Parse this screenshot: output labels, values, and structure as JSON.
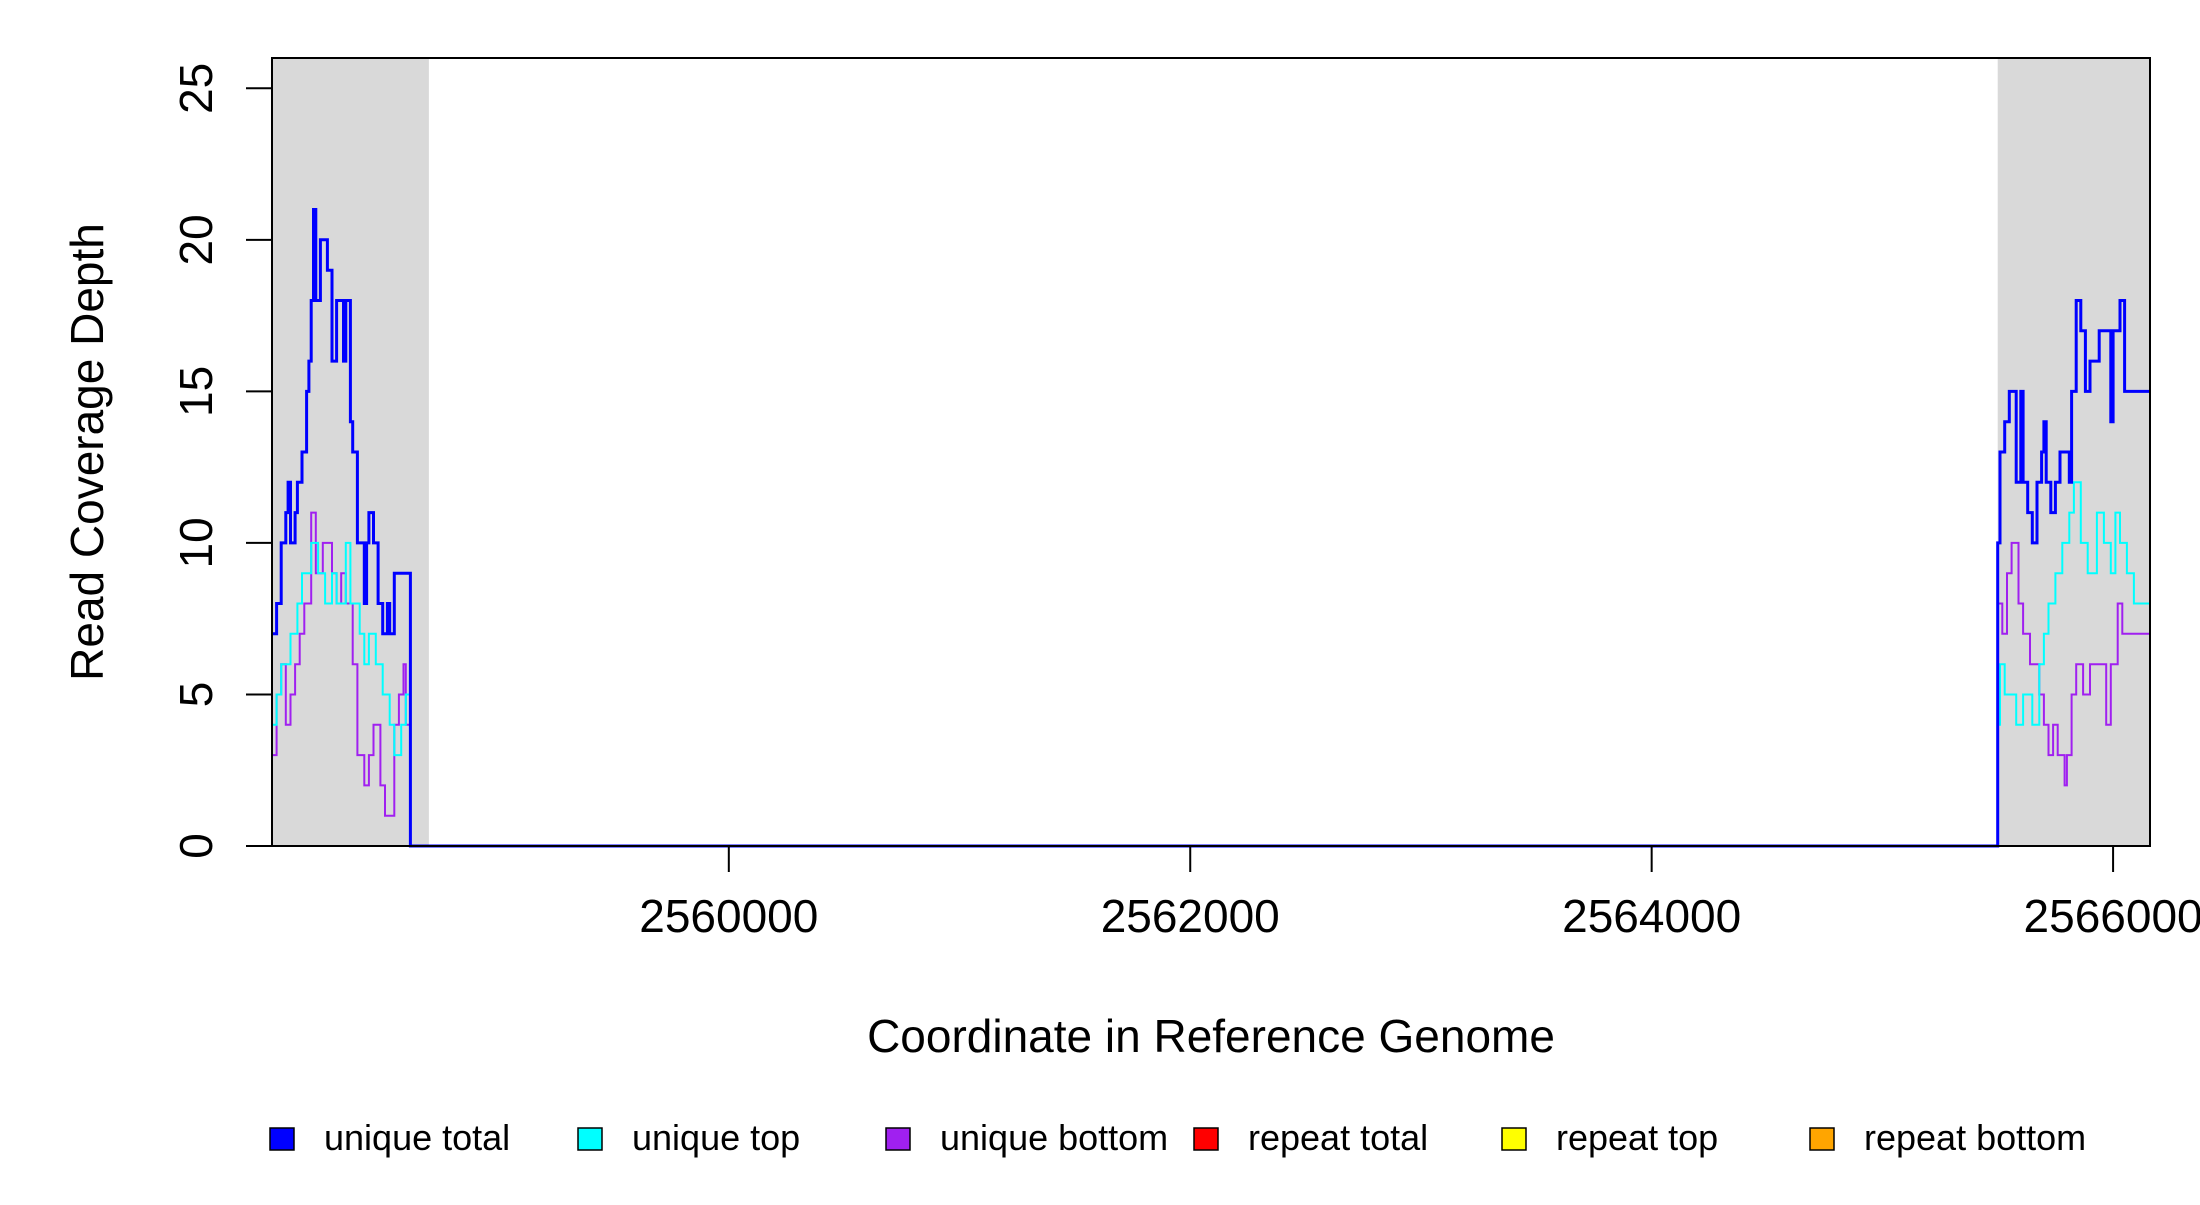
{
  "chart_data": {
    "type": "line",
    "title": "",
    "xlabel": "Coordinate in Reference Genome",
    "ylabel": "Read Coverage Depth",
    "xlim": [
      2558020,
      2566160
    ],
    "ylim": [
      0,
      26
    ],
    "x_ticks": [
      2560000,
      2562000,
      2564000,
      2566000
    ],
    "x_tick_labels": [
      "2560000",
      "2562000",
      "2564000",
      "2566000"
    ],
    "y_ticks": [
      0,
      5,
      10,
      15,
      20,
      25
    ],
    "y_tick_labels": [
      "0",
      "5",
      "10",
      "15",
      "20",
      "25"
    ],
    "grid": false,
    "shaded_regions": [
      {
        "x_start": 2558020,
        "x_end": 2558700,
        "color": "#d9d9d9"
      },
      {
        "x_start": 2565500,
        "x_end": 2566160,
        "color": "#d9d9d9"
      }
    ],
    "legend": {
      "position": "bottom",
      "items": [
        {
          "label": "unique total",
          "color": "#0000ff"
        },
        {
          "label": "unique top",
          "color": "#00ffff"
        },
        {
          "label": "unique bottom",
          "color": "#a020f0"
        },
        {
          "label": "repeat total",
          "color": "#ff0000"
        },
        {
          "label": "repeat top",
          "color": "#ffff00"
        },
        {
          "label": "repeat bottom",
          "color": "#ffa500"
        }
      ]
    },
    "series": [
      {
        "name": "unique total",
        "color": "#0000ff",
        "stroke_width": 3,
        "points": [
          [
            2558020,
            7
          ],
          [
            2558040,
            8
          ],
          [
            2558060,
            10
          ],
          [
            2558080,
            11
          ],
          [
            2558090,
            12
          ],
          [
            2558100,
            10
          ],
          [
            2558120,
            11
          ],
          [
            2558130,
            12
          ],
          [
            2558150,
            13
          ],
          [
            2558170,
            15
          ],
          [
            2558180,
            16
          ],
          [
            2558190,
            18
          ],
          [
            2558200,
            21
          ],
          [
            2558210,
            18
          ],
          [
            2558230,
            20
          ],
          [
            2558260,
            19
          ],
          [
            2558280,
            16
          ],
          [
            2558300,
            18
          ],
          [
            2558330,
            16
          ],
          [
            2558340,
            18
          ],
          [
            2558360,
            14
          ],
          [
            2558370,
            13
          ],
          [
            2558390,
            10
          ],
          [
            2558420,
            8
          ],
          [
            2558430,
            10
          ],
          [
            2558440,
            11
          ],
          [
            2558460,
            10
          ],
          [
            2558480,
            8
          ],
          [
            2558500,
            7
          ],
          [
            2558520,
            8
          ],
          [
            2558530,
            7
          ],
          [
            2558550,
            9
          ],
          [
            2558600,
            9
          ],
          [
            2558620,
            0
          ],
          [
            2565480,
            0
          ],
          [
            2565500,
            10
          ],
          [
            2565510,
            13
          ],
          [
            2565530,
            14
          ],
          [
            2565550,
            15
          ],
          [
            2565580,
            12
          ],
          [
            2565600,
            15
          ],
          [
            2565610,
            12
          ],
          [
            2565630,
            11
          ],
          [
            2565650,
            10
          ],
          [
            2565670,
            12
          ],
          [
            2565690,
            13
          ],
          [
            2565700,
            14
          ],
          [
            2565710,
            12
          ],
          [
            2565730,
            11
          ],
          [
            2565750,
            12
          ],
          [
            2565770,
            13
          ],
          [
            2565810,
            12
          ],
          [
            2565820,
            15
          ],
          [
            2565840,
            18
          ],
          [
            2565860,
            17
          ],
          [
            2565880,
            15
          ],
          [
            2565900,
            16
          ],
          [
            2565940,
            17
          ],
          [
            2565990,
            14
          ],
          [
            2566000,
            17
          ],
          [
            2566030,
            18
          ],
          [
            2566050,
            15
          ],
          [
            2566160,
            15
          ]
        ]
      },
      {
        "name": "unique top",
        "color": "#00ffff",
        "stroke_width": 2,
        "points": [
          [
            2558020,
            4
          ],
          [
            2558040,
            5
          ],
          [
            2558060,
            6
          ],
          [
            2558100,
            7
          ],
          [
            2558130,
            8
          ],
          [
            2558150,
            9
          ],
          [
            2558190,
            10
          ],
          [
            2558220,
            9
          ],
          [
            2558250,
            8
          ],
          [
            2558280,
            9
          ],
          [
            2558300,
            8
          ],
          [
            2558340,
            10
          ],
          [
            2558360,
            8
          ],
          [
            2558400,
            7
          ],
          [
            2558420,
            6
          ],
          [
            2558440,
            7
          ],
          [
            2558470,
            6
          ],
          [
            2558500,
            5
          ],
          [
            2558530,
            4
          ],
          [
            2558550,
            3
          ],
          [
            2558580,
            4
          ],
          [
            2558600,
            5
          ],
          [
            2558620,
            0
          ],
          [
            2565480,
            0
          ],
          [
            2565500,
            4
          ],
          [
            2565510,
            6
          ],
          [
            2565530,
            5
          ],
          [
            2565580,
            4
          ],
          [
            2565610,
            5
          ],
          [
            2565650,
            4
          ],
          [
            2565680,
            6
          ],
          [
            2565700,
            7
          ],
          [
            2565720,
            8
          ],
          [
            2565750,
            9
          ],
          [
            2565780,
            10
          ],
          [
            2565810,
            11
          ],
          [
            2565830,
            12
          ],
          [
            2565860,
            10
          ],
          [
            2565890,
            9
          ],
          [
            2565930,
            11
          ],
          [
            2565960,
            10
          ],
          [
            2565990,
            9
          ],
          [
            2566010,
            11
          ],
          [
            2566030,
            10
          ],
          [
            2566060,
            9
          ],
          [
            2566090,
            8
          ],
          [
            2566160,
            8
          ]
        ]
      },
      {
        "name": "unique bottom",
        "color": "#a020f0",
        "stroke_width": 2,
        "points": [
          [
            2558020,
            3
          ],
          [
            2558040,
            5
          ],
          [
            2558060,
            6
          ],
          [
            2558080,
            4
          ],
          [
            2558100,
            5
          ],
          [
            2558120,
            6
          ],
          [
            2558140,
            7
          ],
          [
            2558160,
            8
          ],
          [
            2558190,
            11
          ],
          [
            2558210,
            9
          ],
          [
            2558240,
            10
          ],
          [
            2558280,
            9
          ],
          [
            2558300,
            8
          ],
          [
            2558320,
            9
          ],
          [
            2558340,
            8
          ],
          [
            2558370,
            6
          ],
          [
            2558390,
            3
          ],
          [
            2558420,
            2
          ],
          [
            2558440,
            3
          ],
          [
            2558460,
            4
          ],
          [
            2558490,
            2
          ],
          [
            2558510,
            1
          ],
          [
            2558550,
            4
          ],
          [
            2558570,
            5
          ],
          [
            2558590,
            6
          ],
          [
            2558600,
            4
          ],
          [
            2558620,
            0
          ],
          [
            2565480,
            0
          ],
          [
            2565500,
            8
          ],
          [
            2565520,
            7
          ],
          [
            2565540,
            9
          ],
          [
            2565560,
            10
          ],
          [
            2565590,
            8
          ],
          [
            2565610,
            7
          ],
          [
            2565640,
            6
          ],
          [
            2565680,
            5
          ],
          [
            2565700,
            4
          ],
          [
            2565720,
            3
          ],
          [
            2565740,
            4
          ],
          [
            2565760,
            3
          ],
          [
            2565790,
            2
          ],
          [
            2565800,
            3
          ],
          [
            2565820,
            5
          ],
          [
            2565840,
            6
          ],
          [
            2565870,
            5
          ],
          [
            2565900,
            6
          ],
          [
            2565970,
            4
          ],
          [
            2565990,
            6
          ],
          [
            2566020,
            8
          ],
          [
            2566040,
            7
          ],
          [
            2566160,
            7
          ]
        ]
      },
      {
        "name": "repeat total",
        "color": "#ff0000",
        "stroke_width": 2,
        "points": [
          [
            2558020,
            0
          ],
          [
            2566160,
            0
          ]
        ]
      },
      {
        "name": "repeat top",
        "color": "#ffff00",
        "stroke_width": 2,
        "points": [
          [
            2558020,
            0
          ],
          [
            2566160,
            0
          ]
        ]
      },
      {
        "name": "repeat bottom",
        "color": "#ffa500",
        "stroke_width": 2,
        "points": [
          [
            2558020,
            0
          ],
          [
            2566160,
            0
          ]
        ]
      }
    ]
  }
}
